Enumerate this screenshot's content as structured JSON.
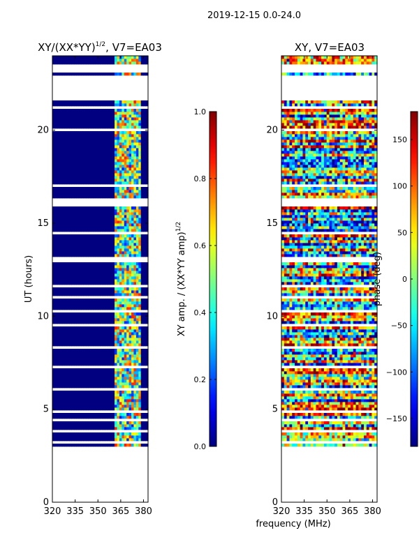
{
  "chart_data": {
    "suptitle": "2019-12-15 0.0-24.0",
    "shared_xlabel": "frequency (MHz)",
    "panels": [
      {
        "type": "heatmap",
        "title": "XY/(XX*YY)",
        "title_sup": "1/2",
        "title_suffix": ", V7=EA03",
        "ylabel": "UT (hours)",
        "xlim": [
          320,
          383
        ],
        "ylim": [
          0,
          24
        ],
        "xticks": [
          320,
          335,
          350,
          365,
          380
        ],
        "yticks": [
          0,
          5,
          10,
          15,
          20
        ],
        "colormap": "jet",
        "clim": [
          0.0,
          1.0
        ],
        "colorbar_label": "XY amp. / (XX*YY amp)",
        "colorbar_label_sup": "1/2",
        "colorbar_ticks": [
          "0.0",
          "0.2",
          "0.4",
          "0.6",
          "0.8",
          "1.0"
        ],
        "data_time_range_hours": [
          3.0,
          24.0
        ],
        "gap_hours": [
          [
            21.6,
            22.3
          ],
          [
            22.35,
            23.0
          ],
          [
            23.15,
            23.5
          ]
        ],
        "bright_channel_range_mhz": [
          361,
          378
        ],
        "background_value": 0.0,
        "bright_value_range": [
          0.3,
          0.85
        ]
      },
      {
        "type": "heatmap",
        "title": "XY, V7=EA03",
        "ylabel": "phase (deg)",
        "xlim": [
          320,
          383
        ],
        "ylim": [
          0,
          24
        ],
        "xticks": [
          320,
          335,
          350,
          365,
          380
        ],
        "yticks": [
          0,
          5,
          10,
          15,
          20
        ],
        "colormap": "jet",
        "clim": [
          -180,
          180
        ],
        "colorbar_ticks": [
          "150",
          "100",
          "50",
          "0",
          "−50",
          "−100",
          "−150"
        ],
        "colorbar_tick_values": [
          150,
          100,
          50,
          0,
          -50,
          -100,
          -150
        ],
        "data_time_range_hours": [
          3.0,
          24.0
        ],
        "gap_hours": [
          [
            21.6,
            22.3
          ],
          [
            22.35,
            23.0
          ],
          [
            23.15,
            23.5
          ]
        ],
        "value_range": [
          -180,
          180
        ]
      }
    ]
  }
}
